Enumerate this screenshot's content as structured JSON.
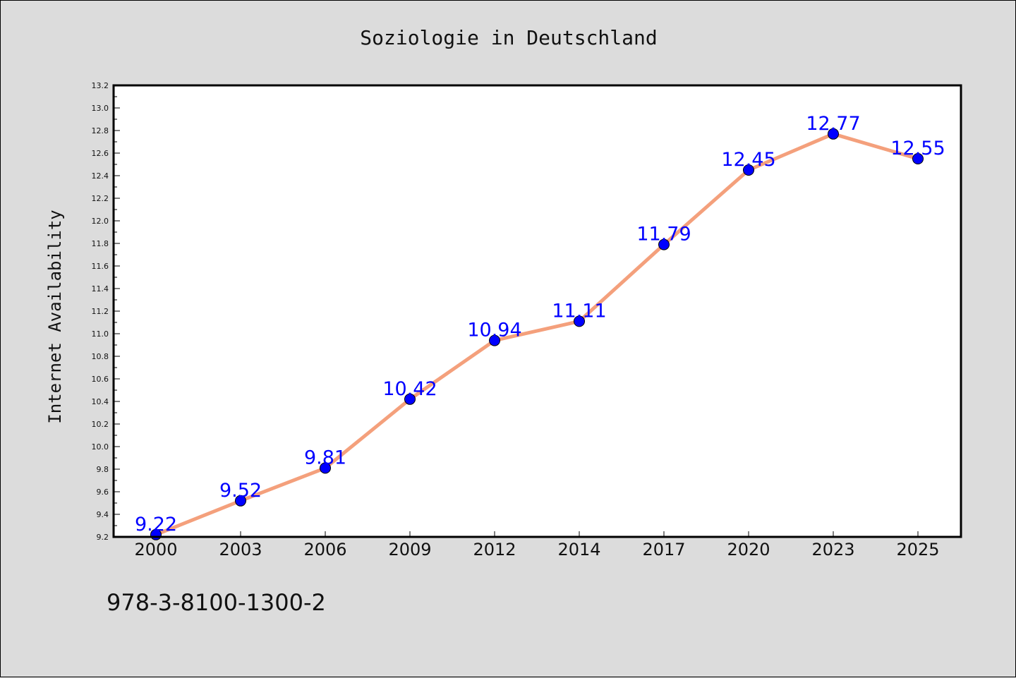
{
  "chart_data": {
    "type": "line",
    "title": "Soziologie in Deutschland",
    "xlabel": "",
    "ylabel": "Internet Availability",
    "categories": [
      "2000",
      "2003",
      "2006",
      "2009",
      "2012",
      "2014",
      "2017",
      "2020",
      "2023",
      "2025"
    ],
    "series": [
      {
        "values": [
          9.22,
          9.52,
          9.81,
          10.42,
          10.94,
          11.11,
          11.79,
          12.45,
          12.77,
          12.55
        ],
        "data_labels": [
          "9.22",
          "9.52",
          "9.81",
          "10.42",
          "10.94",
          "11.11",
          "11.79",
          "12.45",
          "12.77",
          "12.55"
        ]
      }
    ],
    "ylim": [
      9.2,
      13.2
    ],
    "yticks": [
      "9.2",
      "9.4",
      "9.6",
      "9.8",
      "10.0",
      "10.2",
      "10.4",
      "10.6",
      "10.8",
      "11.0",
      "11.2",
      "11.4",
      "11.6",
      "11.8",
      "12.0",
      "12.2",
      "12.4",
      "12.6",
      "12.8",
      "13.0",
      "13.2"
    ],
    "grid": false,
    "legend": "none",
    "colors": {
      "line": "#f4a07c",
      "marker": "#0000ff",
      "label": "#0000ff",
      "background": "#dcdcdc",
      "plot_background": "#ffffff"
    }
  },
  "footer": {
    "code": "978-3-8100-1300-2"
  }
}
